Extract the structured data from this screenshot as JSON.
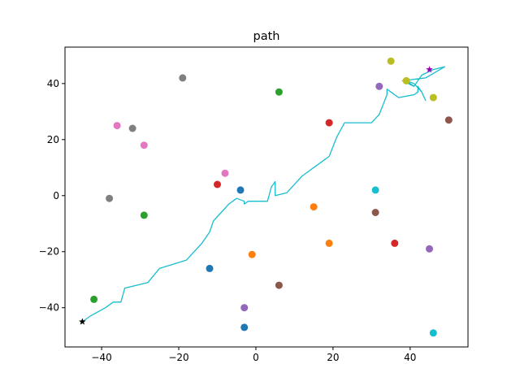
{
  "chart_data": {
    "type": "scatter",
    "title": "path",
    "xlabel": "",
    "ylabel": "",
    "xlim": [
      -49.5,
      55
    ],
    "ylim": [
      -54,
      53
    ],
    "xticks": [
      -40,
      -20,
      0,
      20,
      40
    ],
    "yticks": [
      -40,
      -20,
      0,
      20,
      40
    ],
    "grid": false,
    "points": [
      {
        "x": -4,
        "y": 2,
        "color": "#1f77b4"
      },
      {
        "x": -12,
        "y": -26,
        "color": "#1f77b4"
      },
      {
        "x": -3,
        "y": -47,
        "color": "#1f77b4"
      },
      {
        "x": -1,
        "y": -21,
        "color": "#ff7f0e"
      },
      {
        "x": 15,
        "y": -4,
        "color": "#ff7f0e"
      },
      {
        "x": 19,
        "y": -17,
        "color": "#ff7f0e"
      },
      {
        "x": 6,
        "y": 37,
        "color": "#2ca02c"
      },
      {
        "x": -29,
        "y": -7,
        "color": "#2ca02c"
      },
      {
        "x": -42,
        "y": -37,
        "color": "#2ca02c"
      },
      {
        "x": 19,
        "y": 26,
        "color": "#d62728"
      },
      {
        "x": -10,
        "y": 4,
        "color": "#d62728"
      },
      {
        "x": 36,
        "y": -17,
        "color": "#d62728"
      },
      {
        "x": 32,
        "y": 39,
        "color": "#9467bd"
      },
      {
        "x": 45,
        "y": -19,
        "color": "#9467bd"
      },
      {
        "x": -3,
        "y": -40,
        "color": "#9467bd"
      },
      {
        "x": 50,
        "y": 27,
        "color": "#8c564b"
      },
      {
        "x": 31,
        "y": -6,
        "color": "#8c564b"
      },
      {
        "x": 6,
        "y": -32,
        "color": "#8c564b"
      },
      {
        "x": -36,
        "y": 25,
        "color": "#e377c2"
      },
      {
        "x": -29,
        "y": 18,
        "color": "#e377c2"
      },
      {
        "x": -8,
        "y": 8,
        "color": "#e377c2"
      },
      {
        "x": -19,
        "y": 42,
        "color": "#7f7f7f"
      },
      {
        "x": -32,
        "y": 24,
        "color": "#7f7f7f"
      },
      {
        "x": -38,
        "y": -1,
        "color": "#7f7f7f"
      },
      {
        "x": 35,
        "y": 48,
        "color": "#bcbd22"
      },
      {
        "x": 39,
        "y": 41,
        "color": "#bcbd22"
      },
      {
        "x": 46,
        "y": 35,
        "color": "#bcbd22"
      },
      {
        "x": 31,
        "y": 2,
        "color": "#17becf"
      },
      {
        "x": 46,
        "y": -49,
        "color": "#17becf"
      }
    ],
    "path": {
      "color": "#17becf",
      "x": [
        -45,
        -43,
        -39,
        -37,
        -35,
        -34,
        -28,
        -25,
        -18,
        -16,
        -14,
        -12,
        -11,
        -9,
        -7,
        -5,
        -3,
        -3,
        -2,
        3,
        4,
        5,
        5,
        8,
        12,
        16,
        19,
        21,
        23,
        30,
        32,
        34,
        34,
        37,
        41,
        42,
        42,
        43,
        44,
        43,
        41,
        39,
        41,
        43,
        46,
        49,
        44,
        38,
        41
      ],
      "y": [
        -45,
        -43,
        -40,
        -38,
        -38,
        -33,
        -31,
        -26,
        -23,
        -20,
        -17,
        -13,
        -9,
        -6,
        -3,
        -1,
        -2,
        -3,
        -2,
        -2,
        3,
        5,
        0,
        1,
        7,
        11,
        14,
        21,
        26,
        26,
        29,
        36,
        38,
        35,
        36,
        37,
        39,
        37,
        34,
        37,
        40,
        41,
        39,
        43,
        45,
        46,
        42,
        41,
        39
      ]
    },
    "start_marker": {
      "x": -45,
      "y": -45,
      "color": "#000000",
      "marker": "star"
    },
    "goal_marker": {
      "x": 45,
      "y": 45,
      "color": "#9c00b8",
      "marker": "star"
    }
  }
}
